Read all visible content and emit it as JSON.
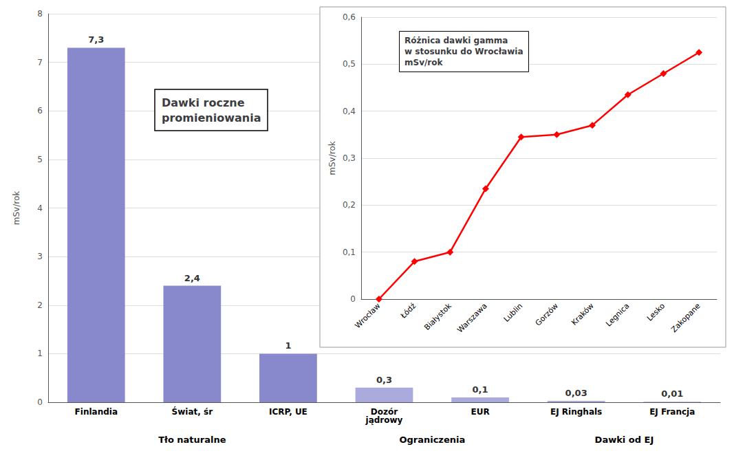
{
  "chart_data": [
    {
      "type": "bar",
      "title": "Dawki roczne\npromieniowania",
      "categories": [
        "Finlandia",
        "Świat, śr",
        "ICRP, UE",
        "Dozór\njądrowy",
        "EUR",
        "EJ Ringhals",
        "EJ Francja"
      ],
      "values": [
        7.3,
        2.4,
        1.0,
        0.3,
        0.1,
        0.03,
        0.01
      ],
      "value_labels": [
        "7,3",
        "2,4",
        "1",
        "0,3",
        "0,1",
        "0,03",
        "0,01"
      ],
      "colors": [
        "#8888cc",
        "#8888cc",
        "#8888cc",
        "#aaaadd",
        "#aaaadd",
        "#aaaadd",
        "#aaaadd"
      ],
      "ylabel": "mSv/rok",
      "ylim": [
        0,
        8
      ],
      "yticks": [
        0,
        1,
        2,
        3,
        4,
        5,
        6,
        7,
        8
      ],
      "grid": true,
      "data_labels": true,
      "groups": [
        {
          "name": "Tło naturalne",
          "categories": [
            "Finlandia",
            "Świat, śr",
            "ICRP, UE"
          ]
        },
        {
          "name": "Ograniczenia",
          "categories": [
            "Dozór\njądrowy",
            "EUR"
          ]
        },
        {
          "name": "Dawki od EJ",
          "categories": [
            "EJ Ringhals",
            "EJ Francja"
          ]
        }
      ]
    },
    {
      "type": "line",
      "title": "Różnica dawki gamma\nw stosunku do Wrocławia\nmSv/rok",
      "categories": [
        "Wrocław",
        "Łódź",
        "Białystok",
        "Warszawa",
        "Lublin",
        "Gorzów",
        "Kraków",
        "Legnica",
        "Lesko",
        "Zakopane"
      ],
      "values": [
        0,
        0.08,
        0.1,
        0.235,
        0.345,
        0.35,
        0.37,
        0.435,
        0.48,
        0.525
      ],
      "color": "#ff0000",
      "marker": "diamond",
      "ylabel": "mSv/rok",
      "ylim": [
        0,
        0.6
      ],
      "yticks": [
        0,
        {
          "value": 0.1,
          "label": "0,1"
        },
        {
          "value": 0.2,
          "label": "0,2"
        },
        {
          "value": 0.3,
          "label": "0,3"
        },
        {
          "value": 0.4,
          "label": "0,4"
        },
        {
          "value": 0.5,
          "label": "0,5"
        },
        {
          "value": 0.6,
          "label": "0,6"
        }
      ],
      "grid": true
    }
  ]
}
